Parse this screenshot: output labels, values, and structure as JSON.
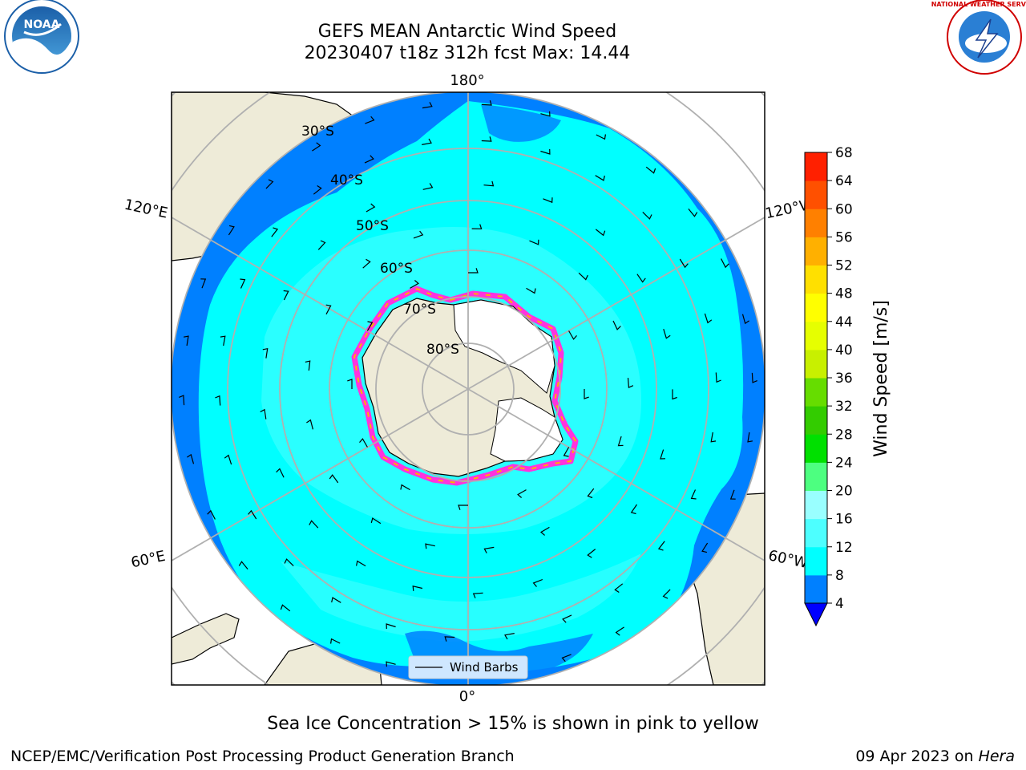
{
  "title": {
    "line1": "GEFS MEAN Antarctic Wind Speed",
    "line2": "20230407 t18z 312h fcst   Max: 14.44"
  },
  "caption": "Sea Ice Concentration > 15% is shown in pink to yellow",
  "footer": {
    "left": "NCEP/EMC/Verification Post Processing Product Generation Branch",
    "date": "09 Apr 2023 on",
    "host": "Hera"
  },
  "map": {
    "projection": "south polar stereographic",
    "lat_labels": [
      "30°S",
      "40°S",
      "50°S",
      "60°S",
      "70°S",
      "80°S"
    ],
    "lon_labels": {
      "top": "180°",
      "bottom": "0°",
      "upper_left": "120°E",
      "upper_right": "120°W",
      "lower_left": "60°E",
      "lower_right": "60°W"
    },
    "legend_label": "Wind Barbs"
  },
  "colorbar": {
    "label": "Wind Speed [m/s]",
    "ticks": [
      "4",
      "8",
      "12",
      "16",
      "20",
      "24",
      "28",
      "32",
      "36",
      "40",
      "44",
      "48",
      "52",
      "56",
      "60",
      "64",
      "68"
    ],
    "colors": [
      "#0080ff",
      "#00ffff",
      "#4dffff",
      "#99ffff",
      "#4dff80",
      "#00e000",
      "#33cc00",
      "#66dd00",
      "#c8f000",
      "#e6ff00",
      "#ffff00",
      "#ffe000",
      "#ffb000",
      "#ff8000",
      "#ff5000",
      "#ff2000"
    ],
    "extend_color": "#0000ff"
  },
  "colors": {
    "land": "#eeebd8",
    "ocean_low": "#0080ff",
    "ocean_mid": "#00ffff",
    "ocean_hi": "#4dffff",
    "sea_ice_edge": "#ff33dd",
    "grid": "#b0b0b0"
  },
  "logos": {
    "left": "NOAA",
    "right": "NATIONAL WEATHER SERVICE"
  }
}
